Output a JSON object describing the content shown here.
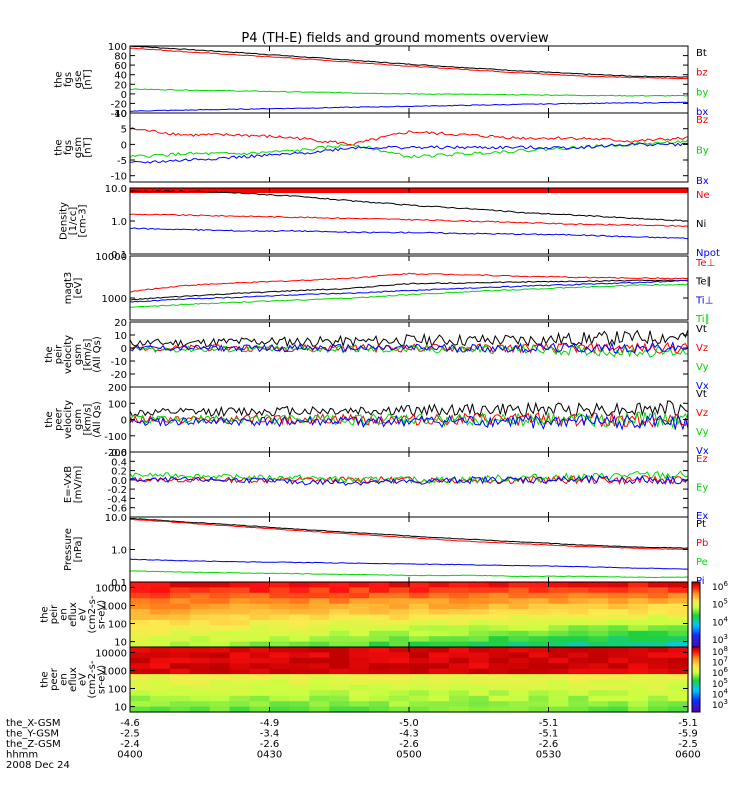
{
  "title": "P4 (TH-E) fields and ground moments overview",
  "colors": {
    "black": "#000000",
    "red": "#ff0000",
    "green": "#00d800",
    "blue": "#0000ff",
    "frame": "#000000"
  },
  "chart_data": [
    {
      "type": "line",
      "ylabel": [
        "the",
        "fgs",
        "gse",
        "[nT]"
      ],
      "ylim": [
        -40,
        100
      ],
      "ticks": [
        "100",
        "80",
        "60",
        "40",
        "20",
        "0",
        "-20",
        "-40"
      ],
      "series": [
        {
          "name": "Bt",
          "color": "black",
          "values": [
            100,
            93,
            86,
            78,
            70,
            62,
            55,
            48,
            42,
            37,
            35
          ]
        },
        {
          "name": "bz",
          "color": "red",
          "values": [
            96,
            88,
            81,
            74,
            66,
            58,
            51,
            44,
            38,
            34,
            32
          ]
        },
        {
          "name": "by",
          "color": "green",
          "values": [
            10,
            8,
            6,
            4,
            2,
            0,
            -1,
            -2,
            -3,
            -4,
            -4
          ]
        },
        {
          "name": "bx",
          "color": "blue",
          "values": [
            -36,
            -34,
            -32,
            -30,
            -28,
            -26,
            -24,
            -22,
            -20,
            -19,
            -18
          ]
        }
      ]
    },
    {
      "type": "line",
      "ylabel": [
        "the",
        "fgs",
        "gsm",
        "[nT]"
      ],
      "ylim": [
        -12,
        10
      ],
      "ticks": [
        "10",
        "5",
        "0",
        "-5",
        "-10"
      ],
      "series": [
        {
          "name": "Bz",
          "color": "red",
          "values": [
            5,
            3,
            3,
            2,
            0,
            4,
            3,
            2,
            2,
            1,
            2
          ]
        },
        {
          "name": "By",
          "color": "green",
          "values": [
            -4,
            -3,
            -3,
            -2,
            0,
            -4,
            -3,
            -2,
            -1,
            0,
            1
          ]
        },
        {
          "name": "Bx",
          "color": "blue",
          "values": [
            -6,
            -5,
            -4,
            -3,
            -1,
            -1,
            -1,
            -1,
            -1,
            0,
            0
          ]
        }
      ]
    },
    {
      "type": "line",
      "ylabel": [
        "Density",
        "[1/cc]",
        "[cm-3]"
      ],
      "scale": "log",
      "ylim": [
        0.1,
        10
      ],
      "ticks": [
        "10.0",
        "1.0",
        "0.1"
      ],
      "series": [
        {
          "name": "Ne",
          "color": "red",
          "values": [
            1.6,
            1.5,
            1.4,
            1.3,
            1.2,
            1.1,
            1.0,
            0.9,
            0.8,
            0.75,
            0.7
          ]
        },
        {
          "name": "Ni",
          "color": "black",
          "values": [
            8,
            8,
            7,
            5.5,
            4,
            3,
            2.4,
            1.8,
            1.5,
            1.2,
            1.0
          ]
        },
        {
          "name": "Npot",
          "color": "blue",
          "values": [
            0.6,
            0.55,
            0.5,
            0.5,
            0.45,
            0.45,
            0.42,
            0.4,
            0.38,
            0.33,
            0.3
          ]
        }
      ]
    },
    {
      "type": "line",
      "ylabel": [
        "magt3",
        "[eV]"
      ],
      "scale": "log",
      "ylim": [
        300,
        10000
      ],
      "ticks": [
        "10000",
        "1000"
      ],
      "series": [
        {
          "name": "Te⊥",
          "color": "red",
          "values": [
            1400,
            2000,
            2300,
            2600,
            3000,
            3800,
            3600,
            3300,
            3100,
            3000,
            2900
          ]
        },
        {
          "name": "Te∥",
          "color": "black",
          "values": [
            900,
            1100,
            1300,
            1500,
            1700,
            2200,
            2300,
            2400,
            2500,
            2600,
            2600
          ]
        },
        {
          "name": "Ti⊥",
          "color": "blue",
          "values": [
            800,
            950,
            1050,
            1200,
            1300,
            1500,
            1700,
            1900,
            2100,
            2300,
            2600
          ]
        },
        {
          "name": "Ti∥",
          "color": "green",
          "values": [
            600,
            700,
            800,
            900,
            1000,
            1200,
            1400,
            1600,
            1800,
            2000,
            2100
          ]
        }
      ]
    },
    {
      "type": "line",
      "ylabel": [
        "the",
        "peir",
        "velocity",
        "gsm",
        "[km/s]",
        "(All Qs)"
      ],
      "ylim": [
        -30,
        20
      ],
      "ticks": [
        "20",
        "10",
        "0",
        "-10",
        "-20"
      ],
      "series": [
        {
          "name": "Vt",
          "color": "black",
          "values": [
            4,
            4,
            5,
            5,
            5,
            6,
            6,
            6,
            7,
            8,
            9
          ]
        },
        {
          "name": "Vz",
          "color": "red",
          "values": [
            0,
            0,
            0,
            0,
            0,
            0,
            0,
            0,
            0,
            0,
            0
          ]
        },
        {
          "name": "Vy",
          "color": "green",
          "values": [
            -1,
            -1,
            -1,
            -1,
            -1,
            -1,
            -1,
            -1,
            -2,
            -3,
            -3
          ]
        },
        {
          "name": "Vx",
          "color": "blue",
          "values": [
            0,
            0,
            0,
            0,
            0,
            0,
            0,
            0,
            0,
            0,
            0
          ]
        }
      ]
    },
    {
      "type": "line",
      "ylabel": [
        "the",
        "peer",
        "velocity",
        "gsm",
        "[km/s]",
        "(All Qs)"
      ],
      "ylim": [
        -200,
        200
      ],
      "ticks": [
        "200",
        "100",
        "0",
        "-100",
        "-200"
      ],
      "series": [
        {
          "name": "Vt",
          "color": "black",
          "values": [
            40,
            45,
            50,
            55,
            55,
            55,
            60,
            60,
            65,
            65,
            70
          ]
        },
        {
          "name": "Vz",
          "color": "red",
          "values": [
            0,
            0,
            0,
            0,
            0,
            0,
            0,
            0,
            0,
            0,
            0
          ]
        },
        {
          "name": "Vy",
          "color": "green",
          "values": [
            0,
            0,
            0,
            0,
            0,
            0,
            0,
            0,
            0,
            0,
            0
          ]
        },
        {
          "name": "Vx",
          "color": "blue",
          "values": [
            -15,
            -15,
            -15,
            -15,
            -15,
            -15,
            -15,
            -15,
            -15,
            -15,
            -15
          ]
        }
      ]
    },
    {
      "type": "line",
      "ylabel": [
        "E=-VxB",
        "[mV/m]"
      ],
      "ylim": [
        -0.8,
        0.6
      ],
      "ticks": [
        "0.6",
        "0.4",
        "0.2",
        "0.0",
        "-0.2",
        "-0.4",
        "-0.6"
      ],
      "series": [
        {
          "name": "Ez",
          "color": "red",
          "values": [
            0,
            0,
            0,
            0,
            0,
            0,
            0,
            0,
            0,
            0,
            0
          ]
        },
        {
          "name": "Ey",
          "color": "green",
          "values": [
            0.1,
            0.1,
            0.05,
            0.05,
            0,
            0,
            0,
            0.05,
            0.05,
            0.1,
            0.1
          ]
        },
        {
          "name": "Ex",
          "color": "blue",
          "values": [
            0,
            0,
            0,
            -0.05,
            -0.05,
            -0.05,
            0,
            0,
            0,
            0,
            0
          ]
        }
      ]
    },
    {
      "type": "line",
      "ylabel": [
        "Pressure",
        "[nPa]"
      ],
      "scale": "log",
      "ylim": [
        0.1,
        10
      ],
      "ticks": [
        "10.0",
        "1.0",
        "0.1"
      ],
      "series": [
        {
          "name": "Pt",
          "color": "black",
          "values": [
            9,
            7,
            5.5,
            4.2,
            3.3,
            2.6,
            2.1,
            1.7,
            1.4,
            1.2,
            1.1
          ]
        },
        {
          "name": "Pb",
          "color": "red",
          "values": [
            8.5,
            6.5,
            5,
            3.8,
            3,
            2.3,
            1.8,
            1.5,
            1.25,
            1.1,
            1.0
          ]
        },
        {
          "name": "Pe",
          "color": "green",
          "values": [
            0.22,
            0.2,
            0.19,
            0.18,
            0.17,
            0.16,
            0.16,
            0.15,
            0.15,
            0.14,
            0.14
          ]
        },
        {
          "name": "Pi",
          "color": "blue",
          "values": [
            0.5,
            0.45,
            0.42,
            0.4,
            0.38,
            0.36,
            0.34,
            0.32,
            0.3,
            0.27,
            0.25
          ]
        }
      ]
    },
    {
      "type": "heatmap",
      "ylabel": [
        "the",
        "peir",
        "en",
        "eflux",
        "eV",
        "(cm2-s-",
        "sr-eV)"
      ],
      "scale": "log",
      "ylim": [
        5,
        20000
      ],
      "ticks": [
        "10000",
        "1000",
        "100",
        "10"
      ],
      "colorbar": {
        "min_exp": 3,
        "max_exp": 6,
        "labels": [
          "10^6",
          "10^5",
          "10^4",
          "10^3"
        ]
      }
    },
    {
      "type": "heatmap",
      "ylabel": [
        "the",
        "peer",
        "en",
        "eflux",
        "eV",
        "(cm2-s-",
        "sr-eV)"
      ],
      "scale": "log",
      "ylim": [
        5,
        20000
      ],
      "ticks": [
        "10000",
        "1000",
        "100",
        "10"
      ],
      "colorbar": {
        "min_exp": 3,
        "max_exp": 8,
        "labels": [
          "10^8",
          "10^7",
          "10^6",
          "10^5",
          "10^4",
          "10^3"
        ]
      }
    }
  ],
  "footer": {
    "rows": [
      {
        "label": "the_X-GSM",
        "values": [
          "-4.6",
          "-4.9",
          "-5.0",
          "-5.1",
          "-5.1"
        ]
      },
      {
        "label": "the_Y-GSM",
        "values": [
          "-2.5",
          "-3.4",
          "-4.3",
          "-5.1",
          "-5.9"
        ]
      },
      {
        "label": "the_Z-GSM",
        "values": [
          "-2.4",
          "-2.6",
          "-2.6",
          "-2.6",
          "-2.5"
        ]
      },
      {
        "label": "hhmm",
        "values": [
          "0400",
          "0430",
          "0500",
          "0530",
          "0600"
        ]
      }
    ],
    "date": "2008 Dec 24"
  }
}
